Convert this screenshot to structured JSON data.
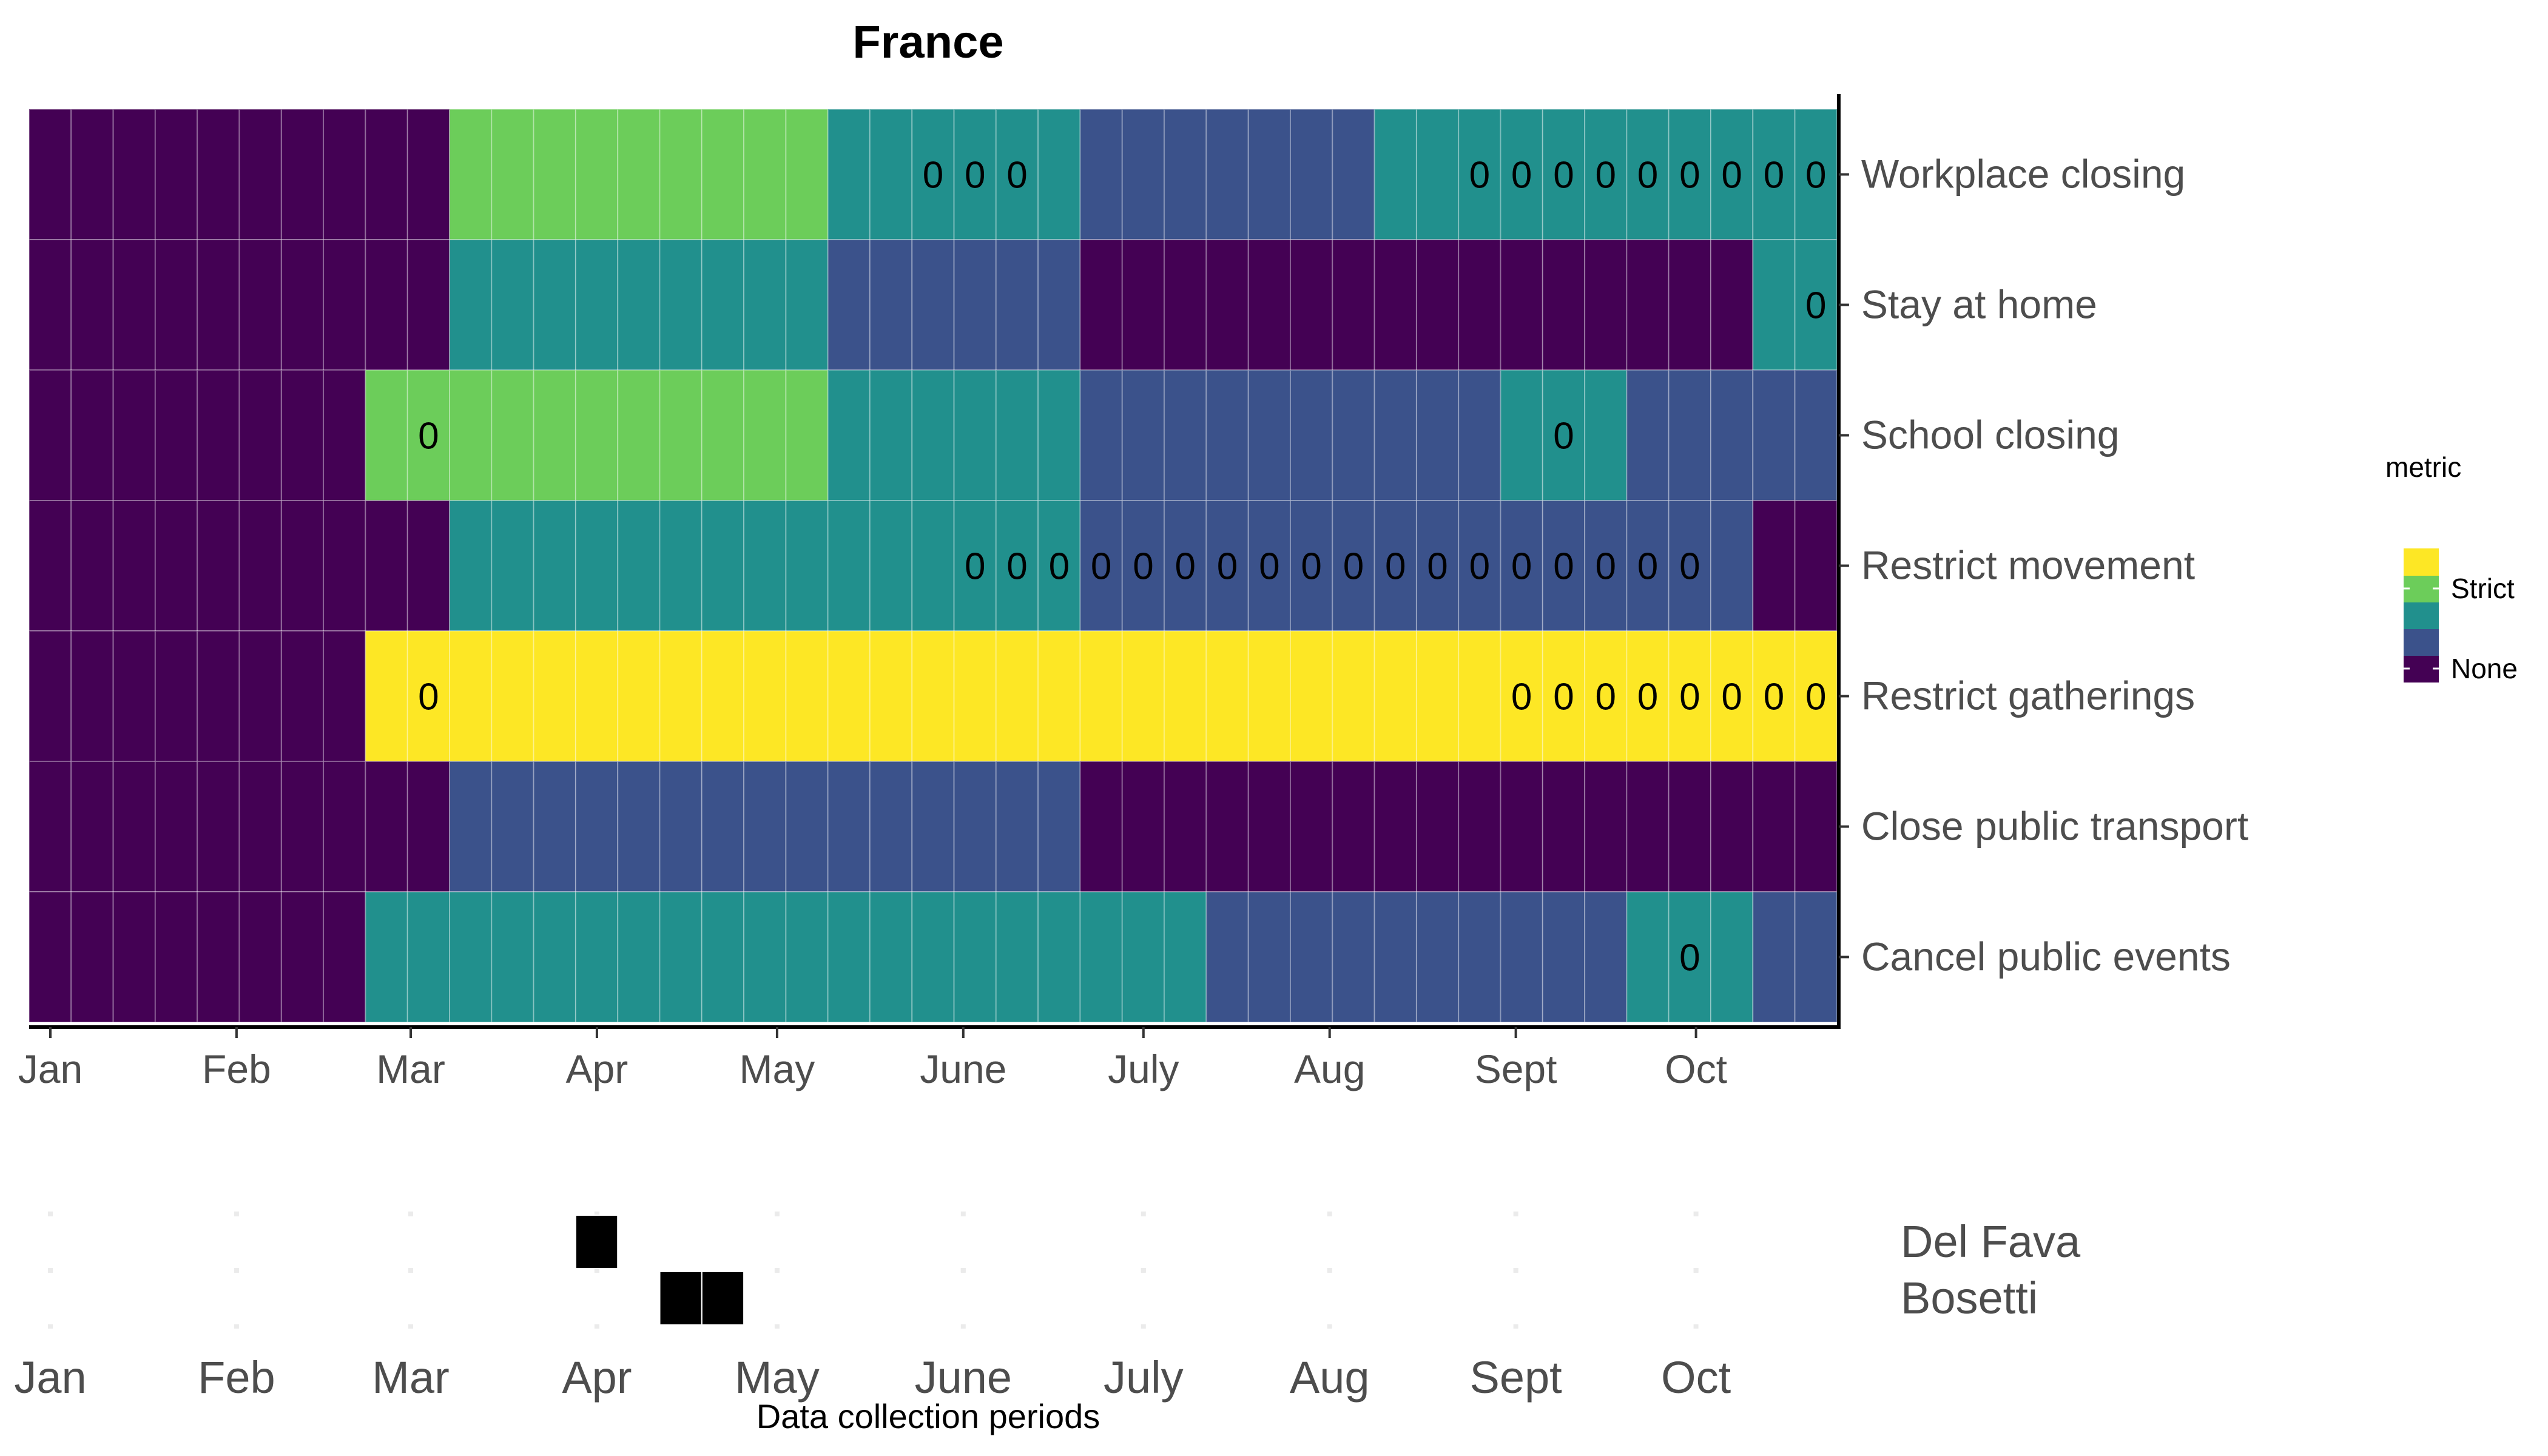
{
  "chart_data": [
    {
      "type": "heatmap",
      "title": "France",
      "x_unit": "week",
      "x_start": "2020-01-01",
      "x_week_count": 43,
      "xlabel": "",
      "ylabel": "",
      "x_ticks": [
        {
          "label": "Jan",
          "date": "2020-01-01"
        },
        {
          "label": "Feb",
          "date": "2020-02-01"
        },
        {
          "label": "Mar",
          "date": "2020-03-01"
        },
        {
          "label": "Apr",
          "date": "2020-04-01"
        },
        {
          "label": "May",
          "date": "2020-05-01"
        },
        {
          "label": "June",
          "date": "2020-06-01"
        },
        {
          "label": "July",
          "date": "2020-07-01"
        },
        {
          "label": "Aug",
          "date": "2020-08-01"
        },
        {
          "label": "Sept",
          "date": "2020-09-01"
        },
        {
          "label": "Oct",
          "date": "2020-10-01"
        }
      ],
      "levels": [
        "None",
        "1",
        "2",
        "Strict",
        "4"
      ],
      "series": [
        {
          "name": "Workplace closing",
          "segments": [
            {
              "from_week": 1,
              "to_week": 10,
              "level": 0
            },
            {
              "from_week": 11,
              "to_week": 19,
              "level": 3
            },
            {
              "from_week": 20,
              "to_week": 25,
              "level": 2
            },
            {
              "from_week": 26,
              "to_week": 32,
              "level": 1
            },
            {
              "from_week": 33,
              "to_week": 43,
              "level": 2
            }
          ],
          "zero_weeks": [
            22,
            23,
            24,
            35,
            36,
            37,
            38,
            39,
            40,
            41,
            42,
            43
          ]
        },
        {
          "name": "Stay at home",
          "segments": [
            {
              "from_week": 1,
              "to_week": 10,
              "level": 0
            },
            {
              "from_week": 11,
              "to_week": 19,
              "level": 2
            },
            {
              "from_week": 20,
              "to_week": 25,
              "level": 1
            },
            {
              "from_week": 26,
              "to_week": 41,
              "level": 0
            },
            {
              "from_week": 42,
              "to_week": 43,
              "level": 2
            }
          ],
          "zero_weeks": [
            43
          ]
        },
        {
          "name": "School closing",
          "segments": [
            {
              "from_week": 1,
              "to_week": 8,
              "level": 0
            },
            {
              "from_week": 9,
              "to_week": 19,
              "level": 3
            },
            {
              "from_week": 20,
              "to_week": 25,
              "level": 2
            },
            {
              "from_week": 26,
              "to_week": 35,
              "level": 1
            },
            {
              "from_week": 36,
              "to_week": 38,
              "level": 2
            },
            {
              "from_week": 39,
              "to_week": 43,
              "level": 1
            }
          ],
          "zero_weeks": [
            10,
            37
          ]
        },
        {
          "name": "Restrict movement",
          "segments": [
            {
              "from_week": 1,
              "to_week": 10,
              "level": 0
            },
            {
              "from_week": 11,
              "to_week": 25,
              "level": 2
            },
            {
              "from_week": 26,
              "to_week": 41,
              "level": 1
            },
            {
              "from_week": 42,
              "to_week": 43,
              "level": 0
            }
          ],
          "zero_weeks": [
            23,
            24,
            25,
            26,
            27,
            28,
            29,
            30,
            31,
            32,
            33,
            34,
            35,
            36,
            37,
            38,
            39,
            40
          ]
        },
        {
          "name": "Restrict gatherings",
          "segments": [
            {
              "from_week": 1,
              "to_week": 8,
              "level": 0
            },
            {
              "from_week": 9,
              "to_week": 43,
              "level": 4
            }
          ],
          "zero_weeks": [
            10,
            36,
            37,
            38,
            39,
            40,
            41,
            42,
            43
          ]
        },
        {
          "name": "Close public transport",
          "segments": [
            {
              "from_week": 1,
              "to_week": 10,
              "level": 0
            },
            {
              "from_week": 11,
              "to_week": 25,
              "level": 1
            },
            {
              "from_week": 26,
              "to_week": 43,
              "level": 0
            }
          ],
          "zero_weeks": []
        },
        {
          "name": "Cancel public events",
          "segments": [
            {
              "from_week": 1,
              "to_week": 8,
              "level": 0
            },
            {
              "from_week": 9,
              "to_week": 28,
              "level": 2
            },
            {
              "from_week": 29,
              "to_week": 38,
              "level": 1
            },
            {
              "from_week": 39,
              "to_week": 41,
              "level": 2
            },
            {
              "from_week": 42,
              "to_week": 43,
              "level": 1
            }
          ],
          "zero_weeks": [
            40
          ]
        }
      ],
      "zero_label": "0",
      "legend": {
        "title": "metric",
        "labels": [
          "Strict",
          "None"
        ],
        "placement": "right"
      },
      "colors": [
        "#440154",
        "#3b528b",
        "#21908d",
        "#6ccd5a",
        "#fde725"
      ]
    },
    {
      "type": "timeline",
      "xlabel": "Data collection periods",
      "x_unit": "week",
      "x_start": "2020-01-01",
      "x_ticks": [
        {
          "label": "Jan",
          "date": "2020-01-01"
        },
        {
          "label": "Feb",
          "date": "2020-02-01"
        },
        {
          "label": "Mar",
          "date": "2020-03-01"
        },
        {
          "label": "Apr",
          "date": "2020-04-01"
        },
        {
          "label": "May",
          "date": "2020-05-01"
        },
        {
          "label": "June",
          "date": "2020-06-01"
        },
        {
          "label": "July",
          "date": "2020-07-01"
        },
        {
          "label": "Aug",
          "date": "2020-08-01"
        },
        {
          "label": "Sept",
          "date": "2020-09-01"
        },
        {
          "label": "Oct",
          "date": "2020-10-01"
        }
      ],
      "series": [
        {
          "name": "Del Fava",
          "weeks": [
            14
          ]
        },
        {
          "name": "Bosetti",
          "weeks": [
            16,
            17
          ]
        }
      ],
      "grid": true
    }
  ]
}
